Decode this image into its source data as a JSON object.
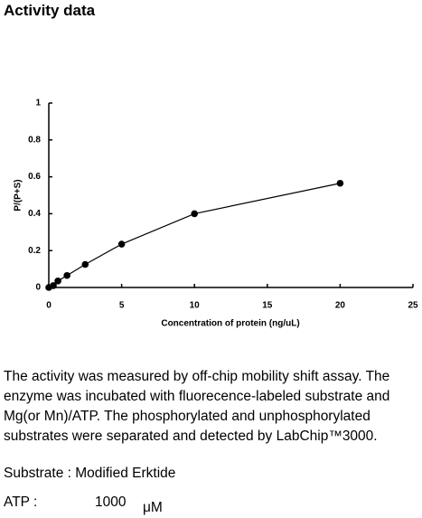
{
  "heading": "Activity data",
  "chart_data": {
    "type": "line",
    "x_label": "Concentration of protein (ng/uL)",
    "y_label": "P/(P+S)",
    "x": [
      0,
      0.3125,
      0.625,
      1.25,
      2.5,
      5,
      10,
      20
    ],
    "series": [
      {
        "color": "#000000",
        "values": [
          0,
          0.01,
          0.035,
          0.065,
          0.125,
          0.235,
          0.4,
          0.565
        ]
      }
    ],
    "xlim": [
      0,
      25
    ],
    "xticks": [
      0,
      5,
      10,
      15,
      20,
      25
    ],
    "ylim": [
      0,
      1
    ],
    "yticks": [
      0,
      0.2,
      0.4,
      0.6,
      0.8,
      1
    ]
  },
  "description": [
    "The activity was measured by off-chip mobility shift assay. The",
    "enzyme was incubated with fluorecence-labeled  substrate and",
    "Mg(or Mn)/ATP. The phosphorylated and unphosphorylated",
    "substrates were separated and detected by LabChip™3000."
  ],
  "substrate": "Substrate : Modified Erktide",
  "atp": {
    "label": "ATP :",
    "value": "1000",
    "unit": "μM"
  }
}
